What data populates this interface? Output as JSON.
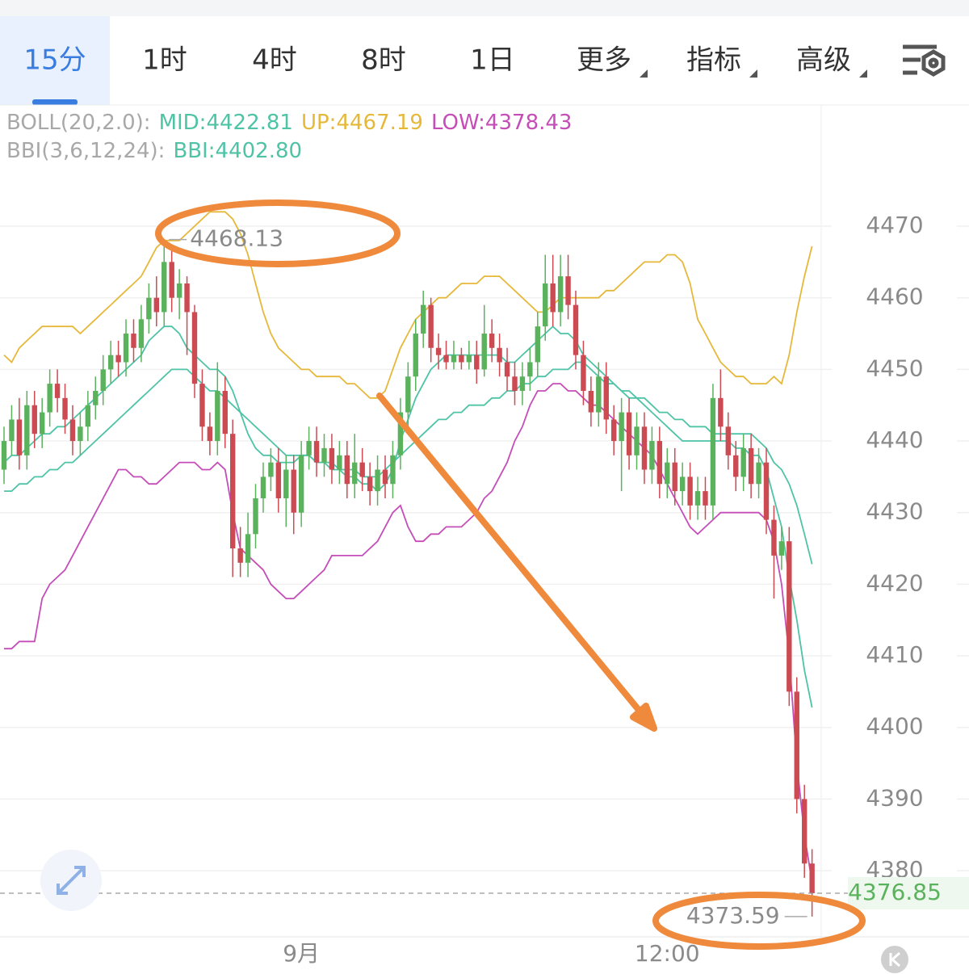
{
  "tabs": [
    "15分",
    "1时",
    "4时",
    "8时",
    "1日",
    "更多",
    "指标",
    "高级"
  ],
  "chart_data": {
    "type": "candlestick",
    "indicators": [
      {
        "label": "BOLL(20,2.0):",
        "lines": [
          0,
          1,
          2
        ]
      },
      {
        "label": "BBI(3,6,12,24):",
        "lines": [
          3
        ]
      }
    ],
    "up_color": "#5bb25d",
    "down_color": "#cc4a52",
    "ylim": [
      4370.76,
      4486.92
    ],
    "yticks": [
      4380,
      4390,
      4400,
      4410,
      4420,
      4430,
      4440,
      4450,
      4460,
      4470
    ],
    "grid": true,
    "categories": [
      null,
      null,
      null,
      null,
      null,
      null,
      null,
      null,
      null,
      null,
      null,
      null,
      null,
      null,
      null,
      null,
      null,
      null,
      null,
      null,
      null,
      null,
      null,
      null,
      null,
      null,
      null,
      null,
      null,
      null,
      null,
      null,
      null,
      null,
      null,
      null,
      null,
      null,
      null,
      "9月",
      null,
      null,
      null,
      null,
      null,
      null,
      null,
      null,
      null,
      null,
      null,
      null,
      null,
      null,
      null,
      null,
      null,
      null,
      null,
      null,
      null,
      null,
      null,
      null,
      null,
      null,
      null,
      null,
      null,
      null,
      null,
      null,
      null,
      null,
      null,
      null,
      null,
      null,
      null,
      null,
      null,
      null,
      null,
      null,
      null,
      null,
      null,
      "12:00",
      null,
      null,
      null,
      null,
      null,
      null,
      null,
      null,
      null,
      null,
      null,
      null,
      null,
      null,
      null,
      null,
      null,
      null,
      null
    ],
    "open": [
      4436,
      4440,
      4443,
      4438,
      4445,
      4441,
      4444,
      4448,
      4446,
      4443,
      4440,
      4442,
      4445,
      4447,
      4450,
      4452,
      4451,
      4455,
      4453,
      4457,
      4460,
      4458,
      4465,
      4460,
      4462,
      4458,
      4448,
      4442,
      4440,
      4447,
      4441,
      4425,
      4423,
      4427,
      4432,
      4435,
      4437,
      4432,
      4436,
      4430,
      4438,
      4440,
      4437,
      4439,
      4436,
      4438,
      4434,
      4437,
      4435,
      4433,
      4436,
      4434,
      4438,
      4444,
      4449,
      4455,
      4459,
      4453,
      4452,
      4451,
      4452,
      4451,
      4452,
      4450,
      4455,
      4453,
      4451,
      4449,
      4447,
      4449,
      4451,
      4456,
      4462,
      4458,
      4463,
      4459,
      4452,
      4447,
      4444,
      4449,
      4443,
      4440,
      4444,
      4438,
      4442,
      4436,
      4440,
      4434,
      4437,
      4433,
      4435,
      4431,
      4433,
      4431,
      4446,
      4442,
      4438,
      4435,
      4439,
      4434,
      4437,
      4429,
      4424,
      4426,
      4405,
      4390,
      4381
    ],
    "high": [
      4442,
      4445,
      4446,
      4447,
      4447,
      4446,
      4450,
      4450,
      4448,
      4445,
      4444,
      4447,
      4449,
      4452,
      4454,
      4454,
      4457,
      4457,
      4459,
      4462,
      4463,
      4468.13,
      4467,
      4464,
      4463,
      4459,
      4450,
      4444,
      4451,
      4449,
      4443,
      4428,
      4430,
      4434,
      4437,
      4439,
      4439,
      4438,
      4438,
      4440,
      4442,
      4442,
      4441,
      4441,
      4440,
      4440,
      4441,
      4439,
      4437,
      4438,
      4438,
      4440,
      4446,
      4451,
      4457,
      4461,
      4460,
      4455,
      4454,
      4454,
      4453,
      4454,
      4454,
      4459,
      4457,
      4455,
      4453,
      4451,
      4451,
      4453,
      4458,
      4466,
      4466,
      4466,
      4466,
      4461,
      4454,
      4449,
      4451,
      4451,
      4445,
      4446,
      4446,
      4444,
      4444,
      4442,
      4442,
      4439,
      4439,
      4437,
      4437,
      4435,
      4435,
      4448,
      4450,
      4444,
      4440,
      4441,
      4441,
      4439,
      4439,
      4431,
      4428,
      4428,
      4407,
      4392,
      4383
    ],
    "low": [
      4434,
      4438,
      4436,
      4436,
      4439,
      4439,
      4442,
      4444,
      4441,
      4438,
      4438,
      4440,
      4443,
      4445,
      4448,
      4449,
      4449,
      4451,
      4451,
      4455,
      4456,
      4456,
      4458,
      4457,
      4452,
      4446,
      4440,
      4438,
      4438,
      4439,
      4421,
      4421,
      4421,
      4425,
      4430,
      4433,
      4430,
      4428,
      4427,
      4428,
      4436,
      4435,
      4435,
      4434,
      4434,
      4432,
      4432,
      4433,
      4431,
      4431,
      4432,
      4432,
      4436,
      4442,
      4447,
      4453,
      4451,
      4450,
      4450,
      4450,
      4450,
      4450,
      4448,
      4449,
      4451,
      4449,
      4447,
      4445,
      4445,
      4447,
      4449,
      4454,
      4456,
      4456,
      4457,
      4450,
      4445,
      4442,
      4442,
      4441,
      4438,
      4433,
      4436,
      4436,
      4434,
      4434,
      4432,
      4432,
      4431,
      4431,
      4429,
      4429,
      4429,
      4429,
      4440,
      4436,
      4433,
      4433,
      4432,
      4432,
      4427,
      4418,
      4422,
      4403,
      4388,
      4379,
      4373.59
    ],
    "close": [
      4440,
      4443,
      4438,
      4445,
      4441,
      4444,
      4448,
      4446,
      4443,
      4440,
      4442,
      4445,
      4447,
      4450,
      4452,
      4451,
      4455,
      4453,
      4457,
      4460,
      4458,
      4465,
      4460,
      4462,
      4458,
      4448,
      4442,
      4440,
      4447,
      4441,
      4425,
      4423,
      4427,
      4432,
      4435,
      4437,
      4432,
      4436,
      4430,
      4438,
      4440,
      4437,
      4439,
      4436,
      4438,
      4434,
      4437,
      4435,
      4433,
      4436,
      4434,
      4438,
      4444,
      4449,
      4455,
      4459,
      4453,
      4452,
      4451,
      4452,
      4451,
      4452,
      4450,
      4455,
      4453,
      4451,
      4449,
      4447,
      4449,
      4451,
      4456,
      4462,
      4458,
      4463,
      4459,
      4452,
      4447,
      4444,
      4449,
      4443,
      4440,
      4444,
      4438,
      4442,
      4436,
      4440,
      4434,
      4437,
      4433,
      4435,
      4431,
      4433,
      4431,
      4446,
      4442,
      4438,
      4435,
      4439,
      4434,
      4437,
      4429,
      4424,
      4426,
      4405,
      4390,
      4381,
      4376.85
    ],
    "series": [
      {
        "name": "MID:4422.81",
        "color": "#4ec3a6",
        "values": [
          4433,
          4433,
          4434,
          4434,
          4435,
          4435,
          4436,
          4436,
          4437,
          4437,
          4438,
          4439,
          4440,
          4441,
          4442,
          4443,
          4444,
          4445,
          4446,
          4447,
          4448,
          4449,
          4450,
          4450,
          4450,
          4449,
          4448,
          4447,
          4447,
          4446,
          4445,
          4444,
          4443,
          4442,
          4441,
          4440,
          4439,
          4438,
          4438,
          4438,
          4438,
          4437,
          4437,
          4437,
          4436,
          4436,
          4436,
          4435,
          4435,
          4435,
          4436,
          4437,
          4438,
          4439,
          4440,
          4441,
          4442,
          4443,
          4443,
          4444,
          4444,
          4445,
          4445,
          4445,
          4446,
          4446,
          4447,
          4447,
          4448,
          4448,
          4449,
          4449,
          4450,
          4450,
          4450,
          4451,
          4451,
          4450,
          4449,
          4448,
          4448,
          4447,
          4447,
          4446,
          4446,
          4445,
          4444,
          4444,
          4443,
          4443,
          4442,
          4442,
          4442,
          4441,
          4441,
          4441,
          4441,
          4441,
          4441,
          4440,
          4439,
          4437,
          4436,
          4434,
          4431,
          4427,
          4422.81
        ]
      },
      {
        "name": "UP:4467.19",
        "color": "#e6b83a",
        "values": [
          4452,
          4451,
          4453,
          4454,
          4455,
          4456,
          4456,
          4456,
          4456,
          4456,
          4455,
          4456,
          4457,
          4458,
          4459,
          4460,
          4461,
          4462,
          4463,
          4465,
          4467,
          4468,
          4468,
          4468,
          4469,
          4470,
          4471,
          4472,
          4472,
          4472,
          4471,
          4469,
          4466,
          4462,
          4458,
          4455,
          4453,
          4452,
          4451,
          4450,
          4450,
          4449,
          4449,
          4449,
          4449,
          4448,
          4448,
          4447,
          4446,
          4446,
          4447,
          4450,
          4453,
          4455,
          4457,
          4458,
          4459,
          4460,
          4460,
          4461,
          4462,
          4462,
          4462,
          4463,
          4463,
          4463,
          4462,
          4461,
          4460,
          4459,
          4458,
          4458,
          4459,
          4460,
          4460,
          4460,
          4460,
          4460,
          4460,
          4461,
          4461,
          4462,
          4463,
          4464,
          4465,
          4465,
          4465,
          4466,
          4466,
          4465,
          4462,
          4457,
          4455,
          4453,
          4451,
          4450,
          4449,
          4449,
          4448,
          4448,
          4448,
          4449,
          4448,
          4452,
          4458,
          4463,
          4467.19
        ]
      },
      {
        "name": "LOW:4378.43",
        "color": "#c54db8",
        "values": [
          4411,
          4411,
          4412,
          4412,
          4412,
          4418,
          4420,
          4421,
          4422,
          4424,
          4426,
          4428,
          4430,
          4432,
          4434,
          4436,
          4436,
          4435,
          4435,
          4434,
          4434,
          4435,
          4436,
          4437,
          4437,
          4437,
          4436,
          4436,
          4437,
          4436,
          4430,
          4425,
          4424,
          4423,
          4422,
          4420,
          4419,
          4418,
          4418,
          4419,
          4420,
          4421,
          4422,
          4424,
          4424,
          4424,
          4424,
          4424,
          4425,
          4426,
          4428,
          4430,
          4431,
          4428,
          4426,
          4426,
          4427,
          4427,
          4428,
          4428,
          4428,
          4429,
          4430,
          4432,
          4433,
          4435,
          4437,
          4440,
          4442,
          4445,
          4447,
          4447,
          4448,
          4448,
          4447,
          4447,
          4446,
          4445,
          4445,
          4444,
          4443,
          4442,
          4441,
          4440,
          4439,
          4438,
          4436,
          4434,
          4432,
          4430,
          4428,
          4427,
          4428,
          4429,
          4430,
          4430,
          4430,
          4430,
          4430,
          4430,
          4429,
          4426,
          4420,
          4410,
          4395,
          4385,
          4378.43
        ]
      },
      {
        "name": "BBI:4402.80",
        "color": "#4ec3a6",
        "values": [
          4437,
          4438,
          4438,
          4439,
          4440,
          4441,
          4441,
          4442,
          4442,
          4443,
          4444,
          4445,
          4446,
          4447,
          4448,
          4449,
          4450,
          4451,
          4452,
          4454,
          4455,
          4456,
          4456,
          4455,
          4453,
          4452,
          4451,
          4450,
          4450,
          4449,
          4447,
          4444,
          4441,
          4439,
          4438,
          4438,
          4437,
          4437,
          4437,
          4438,
          4438,
          4437,
          4437,
          4436,
          4436,
          4435,
          4435,
          4434,
          4434,
          4433,
          4434,
          4436,
          4440,
          4443,
          4446,
          4448,
          4450,
          4451,
          4452,
          4452,
          4452,
          4452,
          4452,
          4452,
          4452,
          4452,
          4451,
          4451,
          4452,
          4453,
          4454,
          4455,
          4456,
          4455,
          4455,
          4454,
          4452,
          4451,
          4450,
          4449,
          4448,
          4447,
          4446,
          4446,
          4445,
          4444,
          4443,
          4442,
          4441,
          4440,
          4440,
          4440,
          4440,
          4440,
          4440,
          4440,
          4439,
          4439,
          4438,
          4438,
          4436,
          4432,
          4428,
          4421,
          4415,
          4408,
          4402.8
        ]
      }
    ]
  }
}
